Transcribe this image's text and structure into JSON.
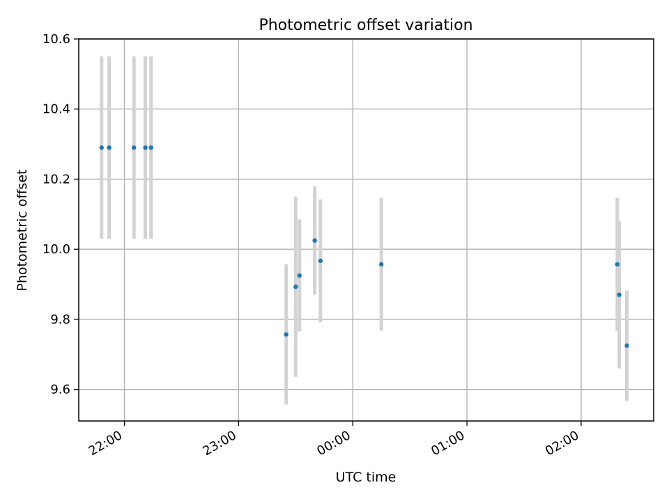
{
  "chart_data": {
    "type": "scatter",
    "title": "Photometric offset variation",
    "xlabel": "UTC time",
    "ylabel": "Photometric offset",
    "x_ticks": [
      "22:00",
      "23:00",
      "00:00",
      "01:00",
      "02:00"
    ],
    "x_tick_hours": [
      22,
      23,
      24,
      25,
      26
    ],
    "x_range_hours": [
      21.6,
      26.635
    ],
    "y_ticks": [
      "9.6",
      "9.8",
      "10.0",
      "10.2",
      "10.4",
      "10.6"
    ],
    "y_tick_values": [
      9.6,
      9.8,
      10.0,
      10.2,
      10.4,
      10.6
    ],
    "ylim": [
      9.51,
      10.6
    ],
    "grid": true,
    "point_color": "#1f77b4",
    "errorbar_color": "#d3d3d3",
    "series": [
      {
        "points": [
          {
            "time": "21:48",
            "y": 10.29,
            "err": 0.26
          },
          {
            "time": "21:52",
            "y": 10.29,
            "err": 0.26
          },
          {
            "time": "22:05",
            "y": 10.29,
            "err": 0.26
          },
          {
            "time": "22:11",
            "y": 10.29,
            "err": 0.26
          },
          {
            "time": "22:14",
            "y": 10.29,
            "err": 0.26
          },
          {
            "time": "23:25",
            "y": 9.757,
            "err": 0.2
          },
          {
            "time": "23:30",
            "y": 9.893,
            "err": 0.257
          },
          {
            "time": "23:32",
            "y": 9.925,
            "err": 0.16
          },
          {
            "time": "23:40",
            "y": 10.025,
            "err": 0.155
          },
          {
            "time": "23:43",
            "y": 9.967,
            "err": 0.175
          },
          {
            "time": "00:15",
            "y": 9.957,
            "err": 0.19
          },
          {
            "time": "02:19",
            "y": 9.957,
            "err": 0.19
          },
          {
            "time": "02:20",
            "y": 9.87,
            "err": 0.21
          },
          {
            "time": "02:24",
            "y": 9.725,
            "err": 0.157
          }
        ]
      }
    ]
  }
}
